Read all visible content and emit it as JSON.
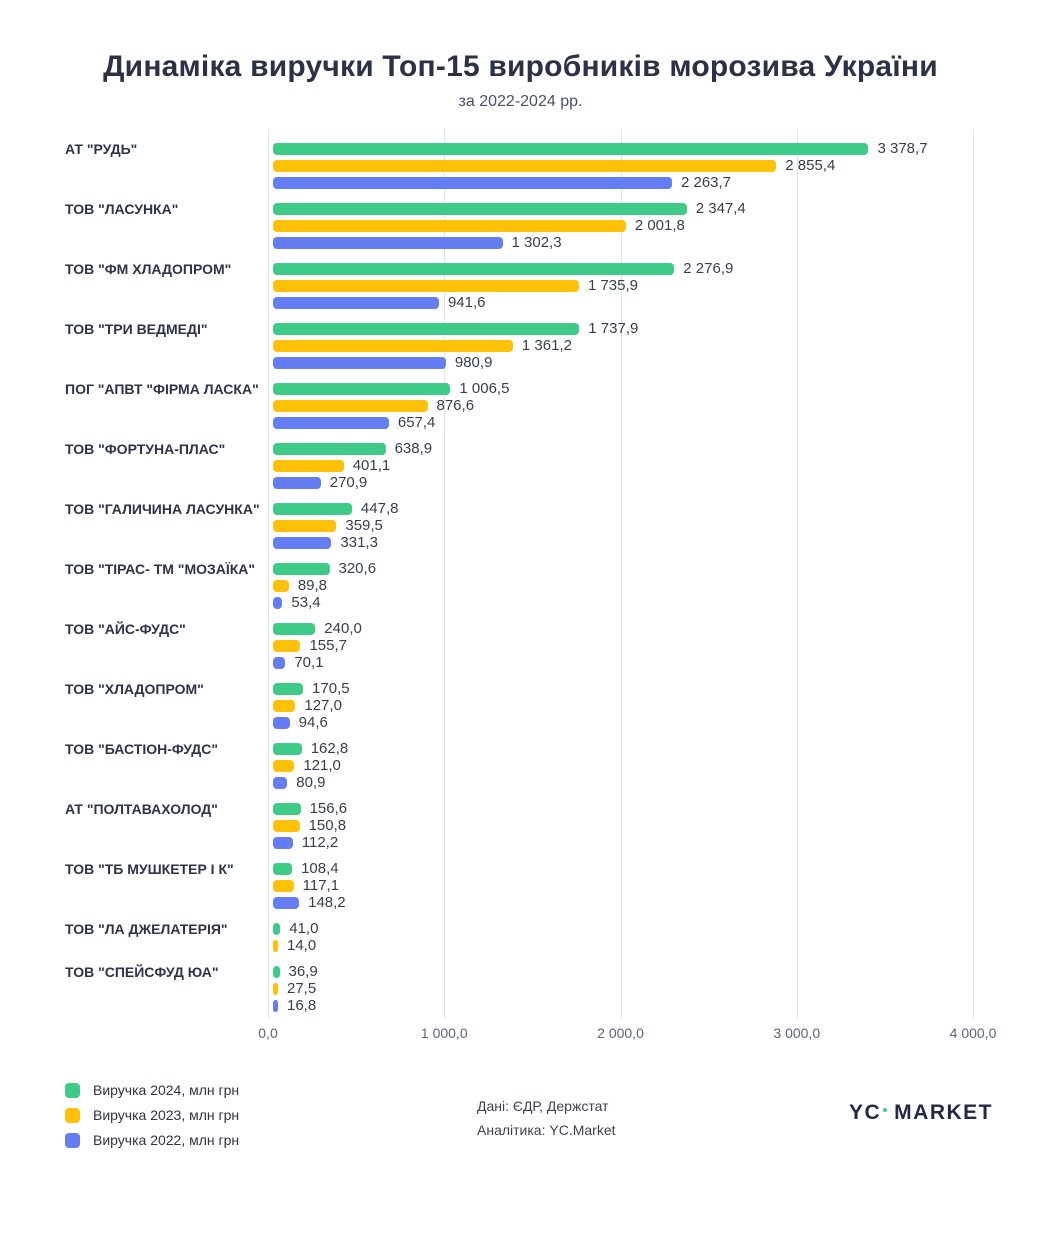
{
  "chart_data": {
    "type": "bar",
    "orientation": "horizontal",
    "title": "Динаміка виручки Топ-15 виробників морозива України",
    "subtitle": "за 2022-2024 рр.",
    "xlim": [
      0,
      4000
    ],
    "grid": "vertical",
    "legend_position": "bottom-left",
    "x_ticks": [
      {
        "value": 0,
        "label": "0,0"
      },
      {
        "value": 1000,
        "label": "1 000,0"
      },
      {
        "value": 2000,
        "label": "2 000,0"
      },
      {
        "value": 3000,
        "label": "3 000,0"
      },
      {
        "value": 4000,
        "label": "4 000,0"
      }
    ],
    "categories": [
      "АТ \"РУДЬ\"",
      "ТОВ \"ЛАСУНКА\"",
      "ТОВ \"ФМ ХЛАДОПРОМ\"",
      "ТОВ \"ТРИ ВЕДМЕДІ\"",
      "ПОГ \"АПВТ \"ФІРМА ЛАСКА\"",
      "ТОВ \"ФОРТУНА-ПЛАС\"",
      "ТОВ \"ГАЛИЧИНА ЛАСУНКА\"",
      "ТОВ \"ТІРАС- ТМ \"МОЗАЇКА\"",
      "ТОВ \"АЙС-ФУДС\"",
      "ТОВ \"ХЛАДОПРОМ\"",
      "ТОВ \"БАСТІОН-ФУДС\"",
      "АТ \"ПОЛТАВАХОЛОД\"",
      "ТОВ \"ТБ МУШКЕТЕР І К\"",
      "ТОВ \"ЛА ДЖЕЛАТЕРІЯ\"",
      "ТОВ \"СПЕЙСФУД ЮА\""
    ],
    "series": [
      {
        "name": "Виручка 2024, млн грн",
        "color": "#3ecb87",
        "values": [
          3378.7,
          2347.4,
          2276.9,
          1737.9,
          1006.5,
          638.9,
          447.8,
          320.6,
          240.0,
          170.5,
          162.8,
          156.6,
          108.4,
          41.0,
          36.9
        ]
      },
      {
        "name": "Виручка 2023, млн грн",
        "color": "#fec107",
        "values": [
          2855.4,
          2001.8,
          1735.9,
          1361.2,
          876.6,
          401.1,
          359.5,
          89.8,
          155.7,
          127.0,
          121.0,
          150.8,
          117.1,
          14.0,
          27.5
        ]
      },
      {
        "name": "Виручка 2022, млн грн",
        "color": "#657df2",
        "values": [
          2263.7,
          1302.3,
          941.6,
          980.9,
          657.4,
          270.9,
          331.3,
          53.4,
          70.1,
          94.6,
          80.9,
          112.2,
          148.2,
          null,
          16.8
        ]
      }
    ]
  },
  "footer": {
    "source_line1": "Дані: ЄДР, Держстат",
    "source_line2": "Аналітика: YC.Market",
    "logo_yc": "YC",
    "logo_market": "MARKET"
  }
}
